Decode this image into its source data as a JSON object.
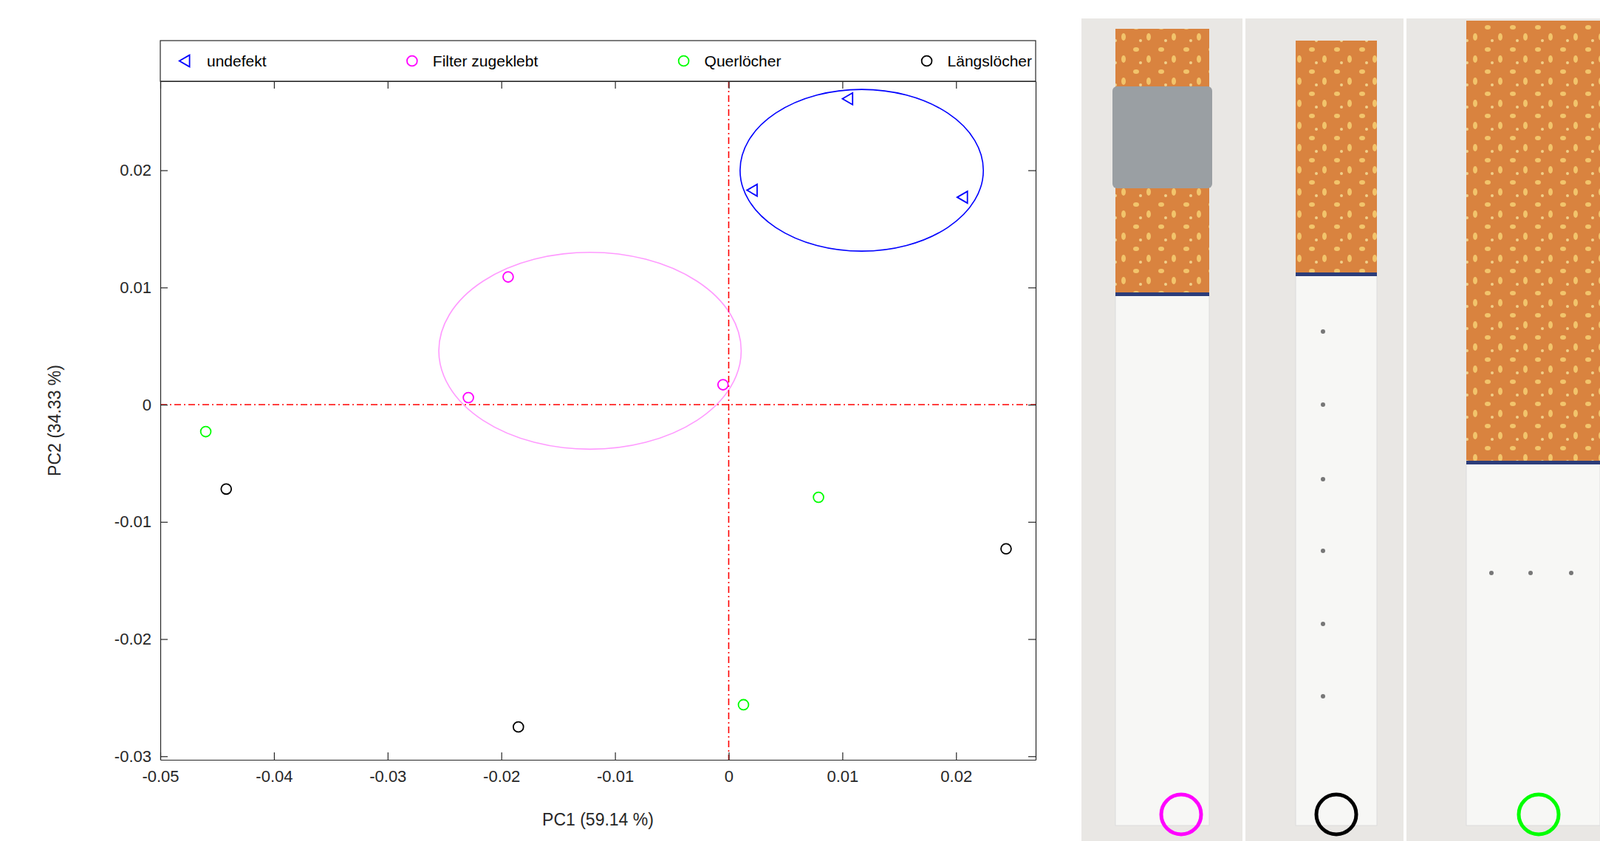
{
  "chart_data": {
    "type": "scatter",
    "x_label": "PC1 (59.14 %)",
    "y_label": "PC2 (34.33 %)",
    "xlim": [
      -0.05,
      0.027
    ],
    "ylim": [
      -0.0303,
      0.0276
    ],
    "xticks": [
      -0.05,
      -0.04,
      -0.03,
      -0.02,
      -0.01,
      0,
      0.01,
      0.02
    ],
    "yticks": [
      -0.03,
      -0.02,
      -0.01,
      0,
      0.01,
      0.02
    ],
    "legend": "top",
    "grid": false,
    "ref_lines": {
      "x": [
        0
      ],
      "y": [
        0
      ]
    },
    "series": [
      {
        "name": "undefekt",
        "color": "#0000ff",
        "marker": "triangle-left",
        "x": [
          0.0106,
          0.0022,
          0.0207
        ],
        "values": [
          0.0261,
          0.0183,
          0.0177
        ],
        "ellipse": {
          "center": [
            0.0117,
            0.02
          ],
          "radii": [
            0.0107,
            0.0069
          ]
        }
      },
      {
        "name": "Filter zugeklebt",
        "color": "#ff00ff",
        "marker": "circle",
        "x": [
          -0.0194,
          -0.0229,
          -0.0005
        ],
        "values": [
          0.0109,
          0.0006,
          0.0017
        ],
        "ellipse": {
          "center": [
            -0.0122,
            0.0046
          ],
          "radii": [
            0.0133,
            0.0084
          ]
        }
      },
      {
        "name": "Querlöcher",
        "color": "#00ff00",
        "marker": "circle",
        "x": [
          -0.046,
          0.0079,
          0.0013
        ],
        "values": [
          -0.0023,
          -0.0079,
          -0.0256
        ]
      },
      {
        "name": "Längslöcher",
        "color": "#000000",
        "marker": "circle",
        "x": [
          -0.0442,
          -0.0185,
          0.0244
        ],
        "values": [
          -0.0072,
          -0.0275,
          -0.0123
        ]
      }
    ]
  }
}
